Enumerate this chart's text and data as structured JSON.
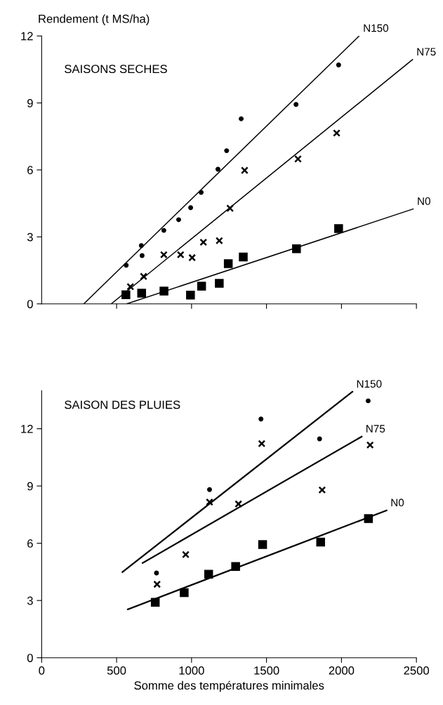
{
  "chart_data": [
    {
      "type": "scatter",
      "title": "SAISONS SECHES",
      "ylabel": "Rendement (t MS/ha)",
      "xlim": [
        0,
        2500
      ],
      "ylim": [
        0,
        12
      ],
      "yticks": [
        0,
        3,
        6,
        9,
        12
      ],
      "xticks": [
        {
          "value": 500,
          "label": null
        },
        {
          "value": 1000,
          "label": null
        },
        {
          "value": 1500,
          "label": null
        },
        {
          "value": 2000,
          "label": null
        },
        {
          "value": 2500,
          "label": null
        }
      ],
      "tick_labels": "y",
      "grid": false,
      "legend": false,
      "series": [
        {
          "type": "scatter",
          "marker": "circle",
          "color": "#000000",
          "x": [
            564,
            665,
            670,
            815,
            914,
            994,
            1064,
            1176,
            1234,
            1331,
            1697,
            1981
          ],
          "values": [
            1.73,
            2.61,
            2.16,
            3.29,
            3.77,
            4.31,
            4.99,
            6.03,
            6.86,
            8.29,
            8.93,
            10.7
          ]
        },
        {
          "type": "scatter",
          "marker": "cross",
          "color": "#000000",
          "x": [
            592,
            680,
            815,
            927,
            1004,
            1079,
            1185,
            1257,
            1354,
            1710,
            1968
          ],
          "values": [
            0.77,
            1.23,
            2.2,
            2.2,
            2.07,
            2.76,
            2.83,
            4.28,
            5.98,
            6.49,
            7.65
          ]
        },
        {
          "type": "scatter",
          "marker": "square",
          "color": "#000000",
          "x": [
            562,
            667,
            816,
            993,
            1067,
            1185,
            1245,
            1345,
            1700,
            1981
          ],
          "values": [
            0.41,
            0.48,
            0.57,
            0.39,
            0.79,
            0.92,
            1.8,
            2.1,
            2.47,
            3.37
          ]
        },
        {
          "type": "line",
          "name": "N150",
          "color": "#000000",
          "line_style": "solid",
          "marker": "none",
          "x": [
            281,
            2118
          ],
          "values": [
            0,
            12
          ]
        },
        {
          "type": "line",
          "name": "N75",
          "color": "#000000",
          "line_style": "solid",
          "marker": "none",
          "x": [
            464,
            2474
          ],
          "values": [
            0,
            10.94
          ]
        },
        {
          "type": "line",
          "name": "N0",
          "color": "#000000",
          "line_style": "solid",
          "marker": "none",
          "x": [
            567,
            2478
          ],
          "values": [
            0,
            4.25
          ]
        }
      ]
    },
    {
      "type": "scatter",
      "title": "SAISON DES PLUIES",
      "xlabel": "Somme des températures minimales",
      "xlim": [
        0,
        2500
      ],
      "ylim": [
        0,
        14
      ],
      "xticks": [
        0,
        500,
        1000,
        1500,
        2000,
        2500
      ],
      "yticks": [
        0,
        3,
        6,
        9,
        12
      ],
      "grid": false,
      "legend": false,
      "series": [
        {
          "type": "scatter",
          "marker": "circle",
          "color": "#000000",
          "x": [
            766,
            1120,
            1463,
            1854,
            2178
          ],
          "values": [
            4.44,
            8.81,
            12.51,
            11.47,
            13.46
          ]
        },
        {
          "type": "scatter",
          "marker": "cross",
          "color": "#000000",
          "x": [
            770,
            961,
            1120,
            1313,
            1468,
            1871,
            2191
          ],
          "values": [
            3.85,
            5.41,
            8.16,
            8.06,
            11.22,
            8.79,
            11.15
          ]
        },
        {
          "type": "scatter",
          "marker": "square",
          "color": "#000000",
          "x": [
            758,
            951,
            1114,
            1294,
            1474,
            1861,
            2180
          ],
          "values": [
            2.91,
            3.41,
            4.38,
            4.78,
            5.93,
            6.06,
            7.29
          ]
        },
        {
          "type": "line",
          "name": "N150",
          "color": "#000000",
          "line_style": "solid",
          "marker": "none",
          "x": [
            539,
            2073
          ],
          "values": [
            4.49,
            13.94
          ]
        },
        {
          "type": "line",
          "name": "N75",
          "color": "#000000",
          "line_style": "solid",
          "marker": "none",
          "x": [
            674,
            2135
          ],
          "values": [
            4.97,
            11.59
          ]
        },
        {
          "type": "line",
          "name": "N0",
          "color": "#000000",
          "line_style": "solid",
          "marker": "none",
          "x": [
            575,
            2301
          ],
          "values": [
            2.54,
            7.72
          ]
        }
      ]
    }
  ]
}
